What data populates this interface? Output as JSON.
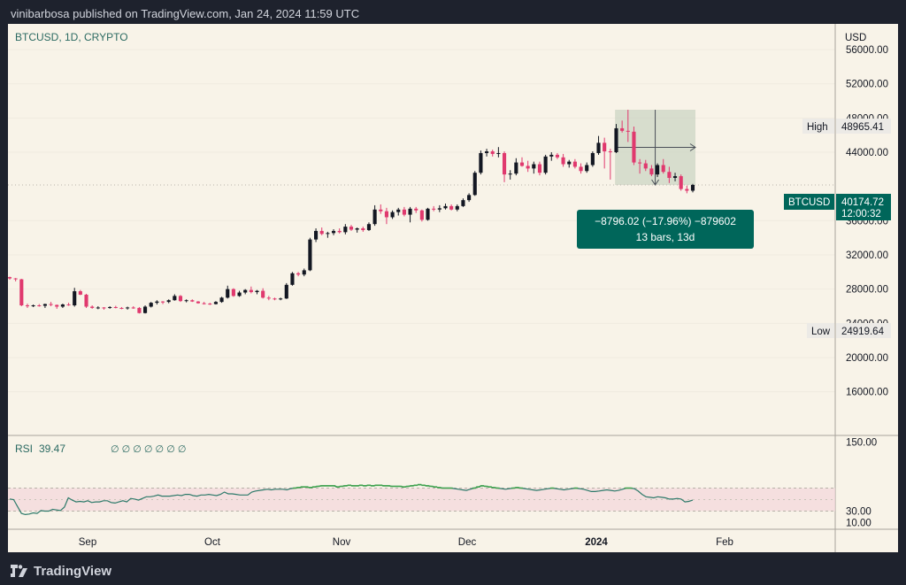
{
  "header": {
    "published": "vinibarbosa published on TradingView.com, Jan 24, 2024 11:59 UTC"
  },
  "footer": {
    "brand": "TradingView"
  },
  "colors": {
    "up": "#131722",
    "down": "#e0396e",
    "rsi_line": "#2d7a6a",
    "rsi_overbought": "#3fa34d",
    "tag_bg": "#00665a",
    "background": "#f8f3e8"
  },
  "chart_data": [
    {
      "type": "candlestick",
      "title": "BTCUSD, 1D, CRYPTO",
      "currency": "USD",
      "ylim": [
        11000,
        59000
      ],
      "y_ticks": [
        "56000.00",
        "52000.00",
        "48000.00",
        "44000.00",
        "36000.00",
        "32000.00",
        "28000.00",
        "24000.00",
        "20000.00",
        "16000.00"
      ],
      "y_tick_values": [
        56000,
        52000,
        48000,
        44000,
        36000,
        32000,
        28000,
        24000,
        20000,
        16000
      ],
      "x_labels": [
        "Sep",
        "Oct",
        "Nov",
        "Dec",
        "2024",
        "Feb"
      ],
      "high": {
        "label": "High",
        "value": "48965.41"
      },
      "low": {
        "label": "Low",
        "value": "24919.64"
      },
      "last": {
        "symbol": "BTCUSD",
        "price": "40174.72",
        "countdown": "12:00:32"
      },
      "measure": {
        "line1": "−8796.02 (−17.96%) −879602",
        "line2": "13 bars, 13d"
      },
      "candles": [
        [
          29400,
          29450,
          29100,
          29250
        ],
        [
          29250,
          29300,
          28900,
          29150
        ],
        [
          29150,
          29200,
          26000,
          26100
        ],
        [
          26100,
          26300,
          25800,
          26050
        ],
        [
          26050,
          26200,
          25900,
          26100
        ],
        [
          26100,
          26250,
          25950,
          26050
        ],
        [
          26050,
          26300,
          25800,
          26250
        ],
        [
          26250,
          26500,
          26000,
          26150
        ],
        [
          26150,
          26200,
          25700,
          25950
        ],
        [
          25950,
          26300,
          25800,
          26200
        ],
        [
          26200,
          26400,
          26050,
          26100
        ],
        [
          26100,
          28150,
          25950,
          27750
        ],
        [
          27750,
          27900,
          27300,
          27350
        ],
        [
          27350,
          27450,
          25800,
          25950
        ],
        [
          25950,
          26100,
          25700,
          25800
        ],
        [
          25800,
          26000,
          25650,
          25850
        ],
        [
          25850,
          25900,
          25600,
          25800
        ],
        [
          25800,
          26000,
          25700,
          25900
        ],
        [
          25900,
          26050,
          25750,
          25800
        ],
        [
          25800,
          25900,
          25650,
          25750
        ],
        [
          25750,
          25950,
          25600,
          25850
        ],
        [
          25850,
          26000,
          25700,
          25800
        ],
        [
          25800,
          25900,
          25150,
          25200
        ],
        [
          25200,
          26100,
          25150,
          25950
        ],
        [
          25950,
          26500,
          25850,
          26400
        ],
        [
          26400,
          26700,
          26200,
          26550
        ],
        [
          26550,
          26600,
          26250,
          26500
        ],
        [
          26500,
          26800,
          26350,
          26700
        ],
        [
          26700,
          27400,
          26650,
          27200
        ],
        [
          27200,
          27300,
          26500,
          26600
        ],
        [
          26600,
          26800,
          26450,
          26700
        ],
        [
          26700,
          26800,
          26500,
          26550
        ],
        [
          26550,
          26600,
          26300,
          26350
        ],
        [
          26350,
          26500,
          26200,
          26300
        ],
        [
          26300,
          26400,
          26150,
          26250
        ],
        [
          26250,
          26600,
          26200,
          26500
        ],
        [
          26500,
          27100,
          26400,
          27000
        ],
        [
          27000,
          28400,
          26900,
          28000
        ],
        [
          28000,
          28100,
          27100,
          27200
        ],
        [
          27200,
          27800,
          27100,
          27600
        ],
        [
          27600,
          28000,
          27400,
          27900
        ],
        [
          27900,
          28300,
          27500,
          27650
        ],
        [
          27650,
          27900,
          27400,
          27800
        ],
        [
          27800,
          28100,
          26900,
          27000
        ],
        [
          27000,
          27200,
          26700,
          26900
        ],
        [
          26900,
          27000,
          26700,
          26800
        ],
        [
          26800,
          27000,
          26700,
          26900
        ],
        [
          26900,
          28700,
          26850,
          28500
        ],
        [
          28500,
          30000,
          28400,
          29850
        ],
        [
          29850,
          30000,
          29500,
          29700
        ],
        [
          29700,
          30400,
          29500,
          30200
        ],
        [
          30200,
          34000,
          30100,
          33800
        ],
        [
          33800,
          35100,
          33500,
          34800
        ],
        [
          34800,
          35200,
          34300,
          34450
        ],
        [
          34450,
          34700,
          34000,
          34550
        ],
        [
          34550,
          35000,
          34300,
          34800
        ],
        [
          34800,
          35100,
          34500,
          34650
        ],
        [
          34650,
          35600,
          34400,
          35300
        ],
        [
          35300,
          35500,
          34800,
          34950
        ],
        [
          34950,
          35200,
          34600,
          35100
        ],
        [
          35100,
          35300,
          34700,
          34900
        ],
        [
          34900,
          35800,
          34800,
          35600
        ],
        [
          35600,
          37800,
          35400,
          37300
        ],
        [
          37300,
          37900,
          36800,
          37100
        ],
        [
          37100,
          37500,
          35600,
          36400
        ],
        [
          36400,
          37200,
          36200,
          37000
        ],
        [
          37000,
          37500,
          36600,
          37300
        ],
        [
          37300,
          37600,
          36500,
          36700
        ],
        [
          36700,
          37600,
          35800,
          37400
        ],
        [
          37400,
          37600,
          36900,
          37200
        ],
        [
          37200,
          37300,
          35900,
          36100
        ],
        [
          36100,
          37500,
          36000,
          37400
        ],
        [
          37400,
          37700,
          37100,
          37300
        ],
        [
          37300,
          37800,
          37000,
          37450
        ],
        [
          37450,
          38000,
          37300,
          37700
        ],
        [
          37700,
          37900,
          37200,
          37300
        ],
        [
          37300,
          37900,
          37100,
          37700
        ],
        [
          37700,
          38600,
          37600,
          38400
        ],
        [
          38400,
          39200,
          38200,
          39000
        ],
        [
          39000,
          41800,
          38900,
          41600
        ],
        [
          41600,
          44200,
          41400,
          43900
        ],
        [
          43900,
          44400,
          43500,
          44100
        ],
        [
          44100,
          44300,
          43500,
          43800
        ],
        [
          43800,
          44600,
          43400,
          43900
        ],
        [
          43900,
          44100,
          40500,
          41400
        ],
        [
          41400,
          41900,
          40800,
          41500
        ],
        [
          41500,
          43300,
          41300,
          42800
        ],
        [
          42800,
          43400,
          42300,
          42400
        ],
        [
          42400,
          43000,
          41700,
          42100
        ],
        [
          42100,
          42900,
          41500,
          42600
        ],
        [
          42600,
          42900,
          41300,
          41600
        ],
        [
          41600,
          43700,
          41400,
          43500
        ],
        [
          43500,
          44000,
          43000,
          43700
        ],
        [
          43700,
          43900,
          43200,
          43400
        ],
        [
          43400,
          43800,
          42300,
          42600
        ],
        [
          42600,
          43100,
          42200,
          42900
        ],
        [
          42900,
          43200,
          42100,
          42300
        ],
        [
          42300,
          42700,
          41500,
          41800
        ],
        [
          41800,
          42800,
          41600,
          42500
        ],
        [
          42500,
          44100,
          42300,
          43900
        ],
        [
          43900,
          45900,
          43700,
          45100
        ],
        [
          45100,
          45700,
          42100,
          44100
        ],
        [
          44100,
          44400,
          40800,
          44000
        ],
        [
          44000,
          47300,
          43900,
          46800
        ],
        [
          46800,
          47700,
          46300,
          46500
        ],
        [
          46500,
          48965,
          45200,
          46400
        ],
        [
          46400,
          47000,
          42500,
          42800
        ],
        [
          42800,
          43200,
          41500,
          42700
        ],
        [
          42700,
          43100,
          41800,
          42100
        ],
        [
          42100,
          42500,
          41200,
          41400
        ],
        [
          41400,
          42700,
          41100,
          42500
        ],
        [
          42500,
          43200,
          41500,
          41700
        ],
        [
          41700,
          42300,
          40400,
          41000
        ],
        [
          41000,
          41600,
          40600,
          41200
        ],
        [
          41200,
          41400,
          39500,
          39700
        ],
        [
          39700,
          40100,
          39200,
          39500
        ],
        [
          39500,
          40300,
          39300,
          40174
        ]
      ]
    },
    {
      "type": "line",
      "title": "RSI",
      "value_label": "39.47",
      "settings": "∅ ∅ ∅ ∅ ∅ ∅ ∅",
      "ylim": [
        0,
        160
      ],
      "y_ticks": [
        "150.00",
        "30.00",
        "10.00"
      ],
      "y_tick_values": [
        150,
        30,
        10
      ],
      "band": [
        30,
        70
      ],
      "values": [
        51,
        50,
        38,
        26,
        24,
        25,
        27,
        26,
        31,
        30,
        30,
        33,
        32,
        31,
        37,
        53,
        49,
        46,
        47,
        46,
        48,
        45,
        46,
        46,
        48,
        48,
        45,
        44,
        46,
        48,
        46,
        52,
        51,
        49,
        52,
        55,
        55,
        56,
        58,
        56,
        56,
        56,
        57,
        58,
        57,
        59,
        59,
        57,
        56,
        58,
        58,
        59,
        58,
        57,
        59,
        63,
        60,
        60,
        59,
        58,
        58,
        58,
        63,
        65,
        66,
        67,
        68,
        67,
        68,
        68,
        68,
        67,
        69,
        70,
        71,
        72,
        72,
        71,
        72,
        73,
        74,
        74,
        74,
        74,
        72,
        73,
        74,
        75,
        74,
        74,
        75,
        74,
        75,
        74,
        75,
        75,
        74,
        74,
        73,
        73,
        73,
        72,
        73,
        74,
        75,
        76,
        75,
        74,
        73,
        72,
        71,
        70,
        70,
        70,
        69,
        68,
        67,
        66,
        68,
        70,
        72,
        74,
        73,
        72,
        71,
        70,
        69,
        68,
        69,
        70,
        71,
        70,
        69,
        68,
        67,
        66,
        67,
        68,
        69,
        70,
        69,
        68,
        67,
        68,
        69,
        70,
        69,
        68,
        66,
        64,
        64,
        65,
        66,
        67,
        66,
        65,
        66,
        68,
        70,
        70,
        69,
        65,
        59,
        55,
        54,
        53,
        55,
        54,
        53,
        51,
        51,
        52,
        51,
        46,
        47,
        49
      ]
    }
  ]
}
